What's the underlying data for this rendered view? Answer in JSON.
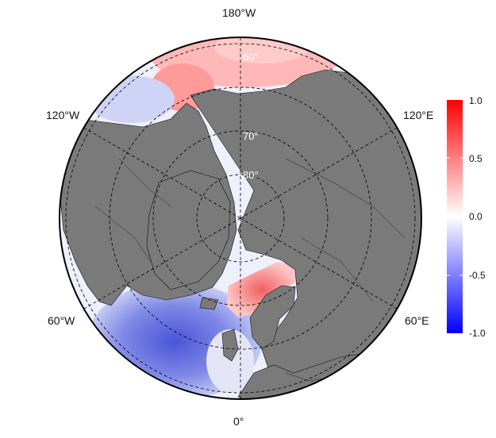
{
  "map": {
    "projection": "north-polar-stereographic",
    "longitude_labels": [
      "180°W",
      "120°W",
      "120°E",
      "60°W",
      "60°E",
      "0°"
    ],
    "latitude_labels": [
      "60°",
      "70°",
      "80°"
    ],
    "colors": {
      "land": "#7a7a7a",
      "coastline": "#000000",
      "grid": "#000000",
      "lat_label": "#ffffff",
      "background": "#ffffff"
    }
  },
  "colorbar": {
    "ticks": [
      "1.0",
      "0.5",
      "0.0",
      "-0.5",
      "-1.0"
    ],
    "min": -1.0,
    "max": 1.0,
    "colors": {
      "high": "#ff0000",
      "mid": "#ffffff",
      "low": "#0000ff"
    }
  }
}
